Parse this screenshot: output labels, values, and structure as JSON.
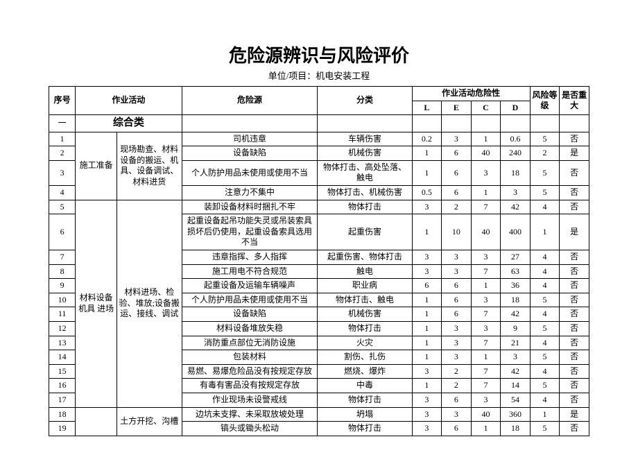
{
  "title": "危险源辨识与风险评价",
  "subtitle": "单位/项目：机电安装工程",
  "headers": {
    "seq": "序号",
    "activity": "作业活动",
    "hazard": "危险源",
    "classification": "分类",
    "danger_group": "作业活动危险性",
    "L": "L",
    "E": "E",
    "C": "C",
    "D": "D",
    "level": "风险等级",
    "major": "是否重大"
  },
  "section": {
    "seq": "一",
    "label": "综合类"
  },
  "group1": {
    "label": "施工准备",
    "sub": "现场勘查、材料设备的搬运、机具、设备调试、材料进货"
  },
  "group2": {
    "label": "材料设备 机具  进场",
    "sub": "材料进场、检验、堆放;设备搬运、接线、调试"
  },
  "group3": {
    "sub": "土方开挖、沟槽"
  },
  "rows": [
    {
      "seq": "1",
      "haz": "司机违章",
      "cls": "车辆伤害",
      "L": "0.2",
      "E": "3",
      "C": "1",
      "D": "0.6",
      "lvl": "5",
      "maj": "否"
    },
    {
      "seq": "2",
      "haz": "设备缺陷",
      "cls": "机械伤害",
      "L": "1",
      "E": "6",
      "C": "40",
      "D": "240",
      "lvl": "2",
      "maj": "是"
    },
    {
      "seq": "3",
      "haz": "个人防护用品未使用或使用不当",
      "cls": "物体打击、高处坠落、触电",
      "L": "1",
      "E": "6",
      "C": "3",
      "D": "18",
      "lvl": "5",
      "maj": "否"
    },
    {
      "seq": "4",
      "haz": "注意力不集中",
      "cls": "物体打击、机械伤害",
      "L": "0.5",
      "E": "6",
      "C": "1",
      "D": "3",
      "lvl": "5",
      "maj": "否"
    },
    {
      "seq": "5",
      "haz": "装卸设备材料时捆扎不牢",
      "cls": "物体打击",
      "L": "3",
      "E": "2",
      "C": "7",
      "D": "42",
      "lvl": "4",
      "maj": "否"
    },
    {
      "seq": "6",
      "haz": "起重设备起吊功能失灵或吊装索具损坏后仍使用，起重设备索具选用不当",
      "cls": "起重伤害",
      "L": "1",
      "E": "10",
      "C": "40",
      "D": "400",
      "lvl": "1",
      "maj": "是"
    },
    {
      "seq": "7",
      "haz": "违章指挥、多人指挥",
      "cls": "起重伤害、物体打击",
      "L": "3",
      "E": "3",
      "C": "3",
      "D": "27",
      "lvl": "4",
      "maj": "否"
    },
    {
      "seq": "8",
      "haz": "施工用电不符合规范",
      "cls": "触电",
      "L": "3",
      "E": "3",
      "C": "7",
      "D": "63",
      "lvl": "4",
      "maj": "否"
    },
    {
      "seq": "9",
      "haz": "起重设备及运输车辆噪声",
      "cls": "职业病",
      "L": "6",
      "E": "6",
      "C": "1",
      "D": "36",
      "lvl": "4",
      "maj": "否"
    },
    {
      "seq": "10",
      "haz": "个人防护用品未使用或使用不当",
      "cls": "物体打击、触电",
      "L": "1",
      "E": "6",
      "C": "3",
      "D": "18",
      "lvl": "5",
      "maj": "否"
    },
    {
      "seq": "11",
      "haz": "设备缺陷",
      "cls": "机械伤害",
      "L": "1",
      "E": "6",
      "C": "7",
      "D": "42",
      "lvl": "4",
      "maj": "否"
    },
    {
      "seq": "12",
      "haz": "材料设备堆放失稳",
      "cls": "物体打击",
      "L": "1",
      "E": "3",
      "C": "3",
      "D": "9",
      "lvl": "5",
      "maj": "否"
    },
    {
      "seq": "13",
      "haz": "消防重点部位无消防设施",
      "cls": "火灾",
      "L": "1",
      "E": "3",
      "C": "7",
      "D": "21",
      "lvl": "4",
      "maj": "否"
    },
    {
      "seq": "14",
      "haz": "包装材料",
      "cls": "割伤、扎伤",
      "L": "1",
      "E": "3",
      "C": "1",
      "D": "3",
      "lvl": "5",
      "maj": "否"
    },
    {
      "seq": "15",
      "haz": "易燃、易爆危险品没有按规定存放",
      "cls": "燃烧、爆炸",
      "L": "3",
      "E": "2",
      "C": "7",
      "D": "42",
      "lvl": "4",
      "maj": "否"
    },
    {
      "seq": "16",
      "haz": "有毒有害品没有按规定存放",
      "cls": "中毒",
      "L": "1",
      "E": "2",
      "C": "7",
      "D": "14",
      "lvl": "5",
      "maj": "否"
    },
    {
      "seq": "17",
      "haz": "作业现场未设警戒线",
      "cls": "物体打击",
      "L": "3",
      "E": "6",
      "C": "3",
      "D": "54",
      "lvl": "4",
      "maj": "否"
    },
    {
      "seq": "18",
      "haz": "边坑未支撑、未采取放坡处理",
      "cls": "坍塌",
      "L": "3",
      "E": "3",
      "C": "40",
      "D": "360",
      "lvl": "1",
      "maj": "是"
    },
    {
      "seq": "19",
      "haz": "镐头或锄头松动",
      "cls": "物体打击",
      "L": "3",
      "E": "6",
      "C": "1",
      "D": "18",
      "lvl": "5",
      "maj": "否"
    }
  ]
}
